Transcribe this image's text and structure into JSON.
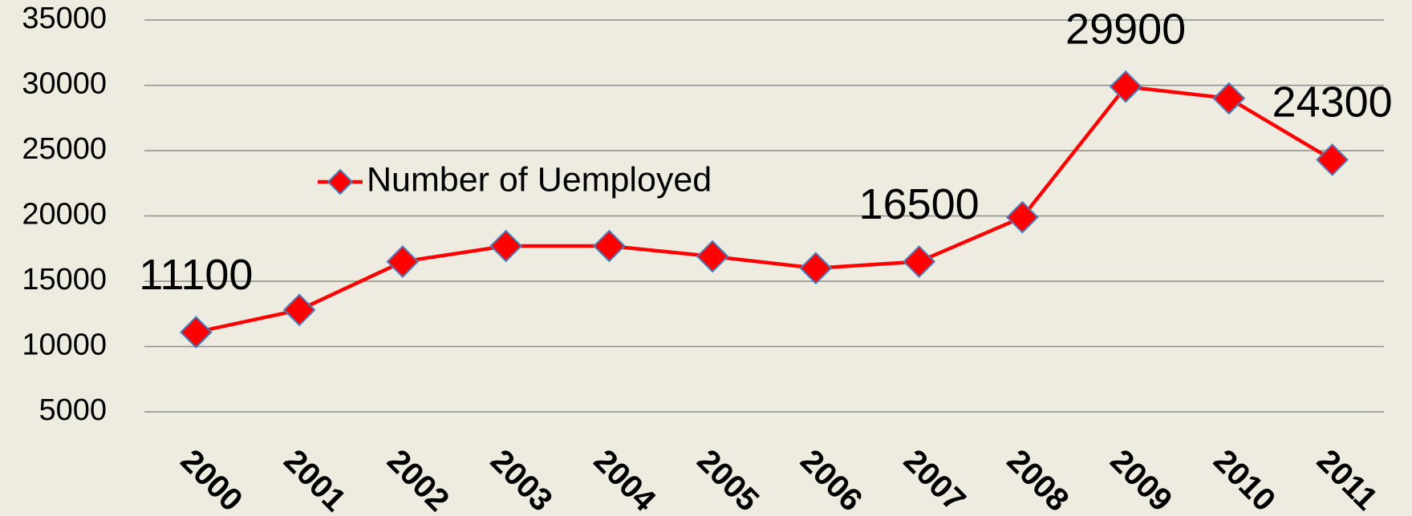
{
  "chart_data": {
    "type": "line",
    "categories": [
      "2000",
      "2001",
      "2002",
      "2003",
      "2004",
      "2005",
      "2006",
      "2007",
      "2008",
      "2009",
      "2010",
      "2011"
    ],
    "series": [
      {
        "name": "Number of Uemployed",
        "color": "#ff0000",
        "values": [
          11100,
          12800,
          16500,
          17700,
          17700,
          16900,
          16000,
          16500,
          19900,
          29900,
          29000,
          24300
        ],
        "value_labels": [
          "11100",
          null,
          null,
          null,
          null,
          null,
          null,
          "16500",
          null,
          "29900",
          null,
          "24300"
        ]
      }
    ],
    "ylim": [
      5000,
      35000
    ],
    "yticks": [
      5000,
      10000,
      15000,
      20000,
      25000,
      30000,
      35000
    ],
    "grid": true
  }
}
